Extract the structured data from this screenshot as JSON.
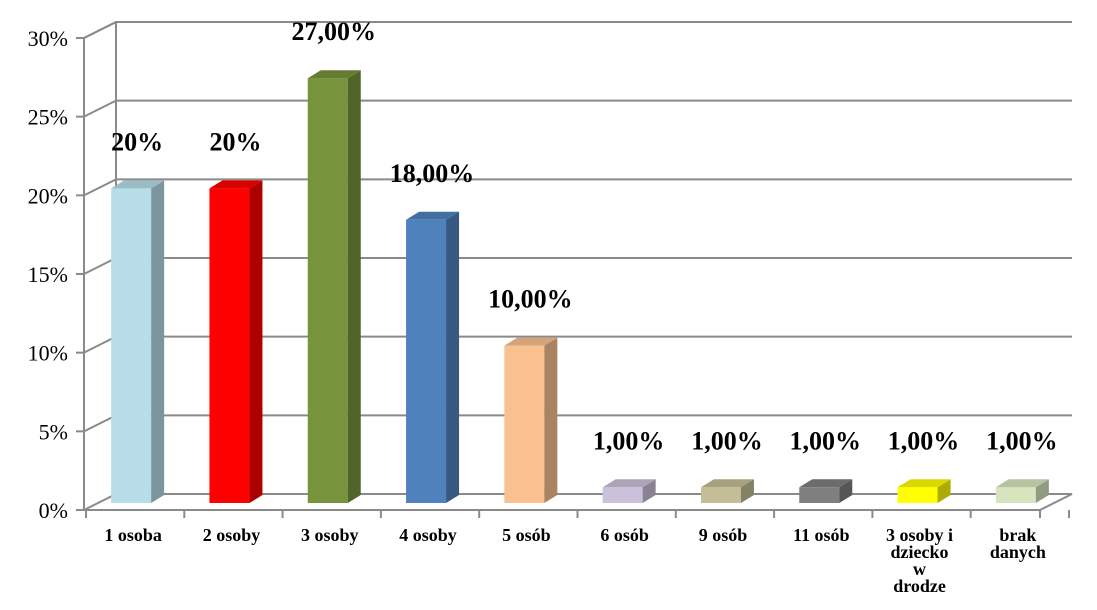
{
  "chart_data": {
    "type": "bar",
    "three_d": true,
    "grid": true,
    "legend": "none",
    "ylim": [
      0,
      30
    ],
    "yticks": [
      "0%",
      "5%",
      "10%",
      "15%",
      "20%",
      "25%",
      "30%"
    ],
    "categories": [
      [
        "1 osoba"
      ],
      [
        "2 osoby"
      ],
      [
        "3 osoby"
      ],
      [
        "4 osoby"
      ],
      [
        "5 osób"
      ],
      [
        "6 osób"
      ],
      [
        "9 osób"
      ],
      [
        "11 osób"
      ],
      [
        "3 osoby i",
        "dziecko",
        "w",
        "drodze"
      ],
      [
        "brak",
        "danych"
      ]
    ],
    "values": [
      20,
      20,
      27,
      18,
      10,
      1,
      1,
      1,
      1,
      1
    ],
    "data_labels": [
      "20%",
      "20%",
      "27,00%",
      "18,00%",
      "10,00%",
      "1,00%",
      "1,00%",
      "1,00%",
      "1,00%",
      "1,00%"
    ],
    "colors": [
      "#b7dde8",
      "#ff0000",
      "#77933c",
      "#4f81bd",
      "#fac090",
      "#ccc1da",
      "#c4bd97",
      "#7f7f7f",
      "#ffff00",
      "#d7e4bd"
    ]
  }
}
